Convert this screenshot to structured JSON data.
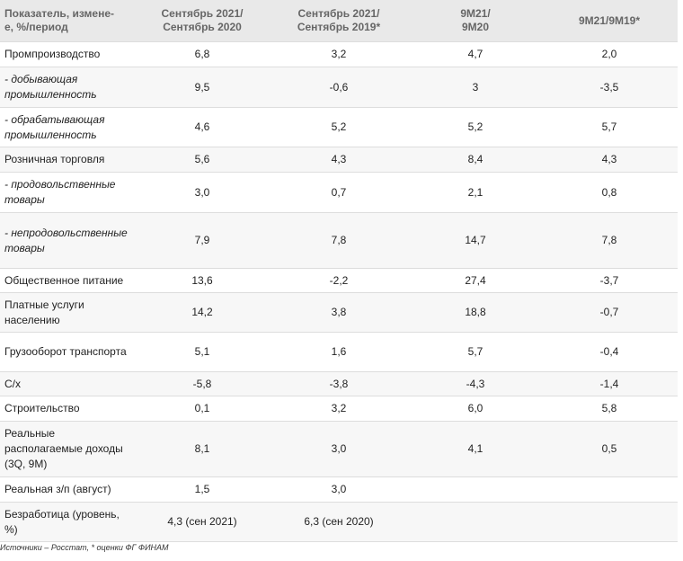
{
  "table": {
    "headers": [
      "Показатель, измене-\nе, %/период",
      "Сентябрь 2021/\nСентябрь 2020",
      "Сентябрь 2021/\nСентябрь 2019*",
      "9M21/\n9M20",
      "9M21/9M19*"
    ],
    "rows": [
      {
        "label": "Промпроизводство",
        "sub": false,
        "values": [
          "6,8",
          "3,2",
          "4,7",
          "2,0"
        ]
      },
      {
        "label": "- добывающая промышленность",
        "sub": true,
        "values": [
          "9,5",
          "-0,6",
          "3",
          "-3,5"
        ]
      },
      {
        "label": "- обрабатывающая промышленность",
        "sub": true,
        "values": [
          "4,6",
          "5,2",
          "5,2",
          "5,7"
        ]
      },
      {
        "label": "Розничная торговля",
        "sub": false,
        "values": [
          "5,6",
          "4,3",
          "8,4",
          "4,3"
        ]
      },
      {
        "label": "- продовольственные товары",
        "sub": true,
        "values": [
          "3,0",
          "0,7",
          "2,1",
          "0,8"
        ]
      },
      {
        "label": "- непродовольственные товары",
        "sub": true,
        "values": [
          "7,9",
          "7,8",
          "14,7",
          "7,8"
        ]
      },
      {
        "label": "Общественное питание",
        "sub": false,
        "values": [
          "13,6",
          "-2,2",
          "27,4",
          "-3,7"
        ]
      },
      {
        "label": "Платные услуги населению",
        "sub": false,
        "values": [
          "14,2",
          "3,8",
          "18,8",
          "-0,7"
        ]
      },
      {
        "label": "Грузооборот транспорта",
        "sub": false,
        "values": [
          "5,1",
          "1,6",
          "5,7",
          "-0,4"
        ]
      },
      {
        "label": "С/х",
        "sub": false,
        "values": [
          "-5,8",
          "-3,8",
          "-4,3",
          "-1,4"
        ]
      },
      {
        "label": "Строительство",
        "sub": false,
        "values": [
          "0,1",
          "3,2",
          "6,0",
          "5,8"
        ]
      },
      {
        "label": "Реальные располагаемые доходы (3Q, 9M)",
        "sub": false,
        "values": [
          "8,1",
          "3,0",
          "4,1",
          "0,5"
        ]
      },
      {
        "label": "Реальная з/п (август)",
        "sub": false,
        "values": [
          "1,5",
          "3,0",
          "",
          ""
        ]
      },
      {
        "label": "Безработица (уровень, %)",
        "sub": false,
        "values": [
          "4,3 (сен 2021)",
          "6,3 (сен 2020)",
          "",
          ""
        ]
      }
    ]
  },
  "footnote": "Источники – Росстат, * оценки ФГ ФИНАМ"
}
